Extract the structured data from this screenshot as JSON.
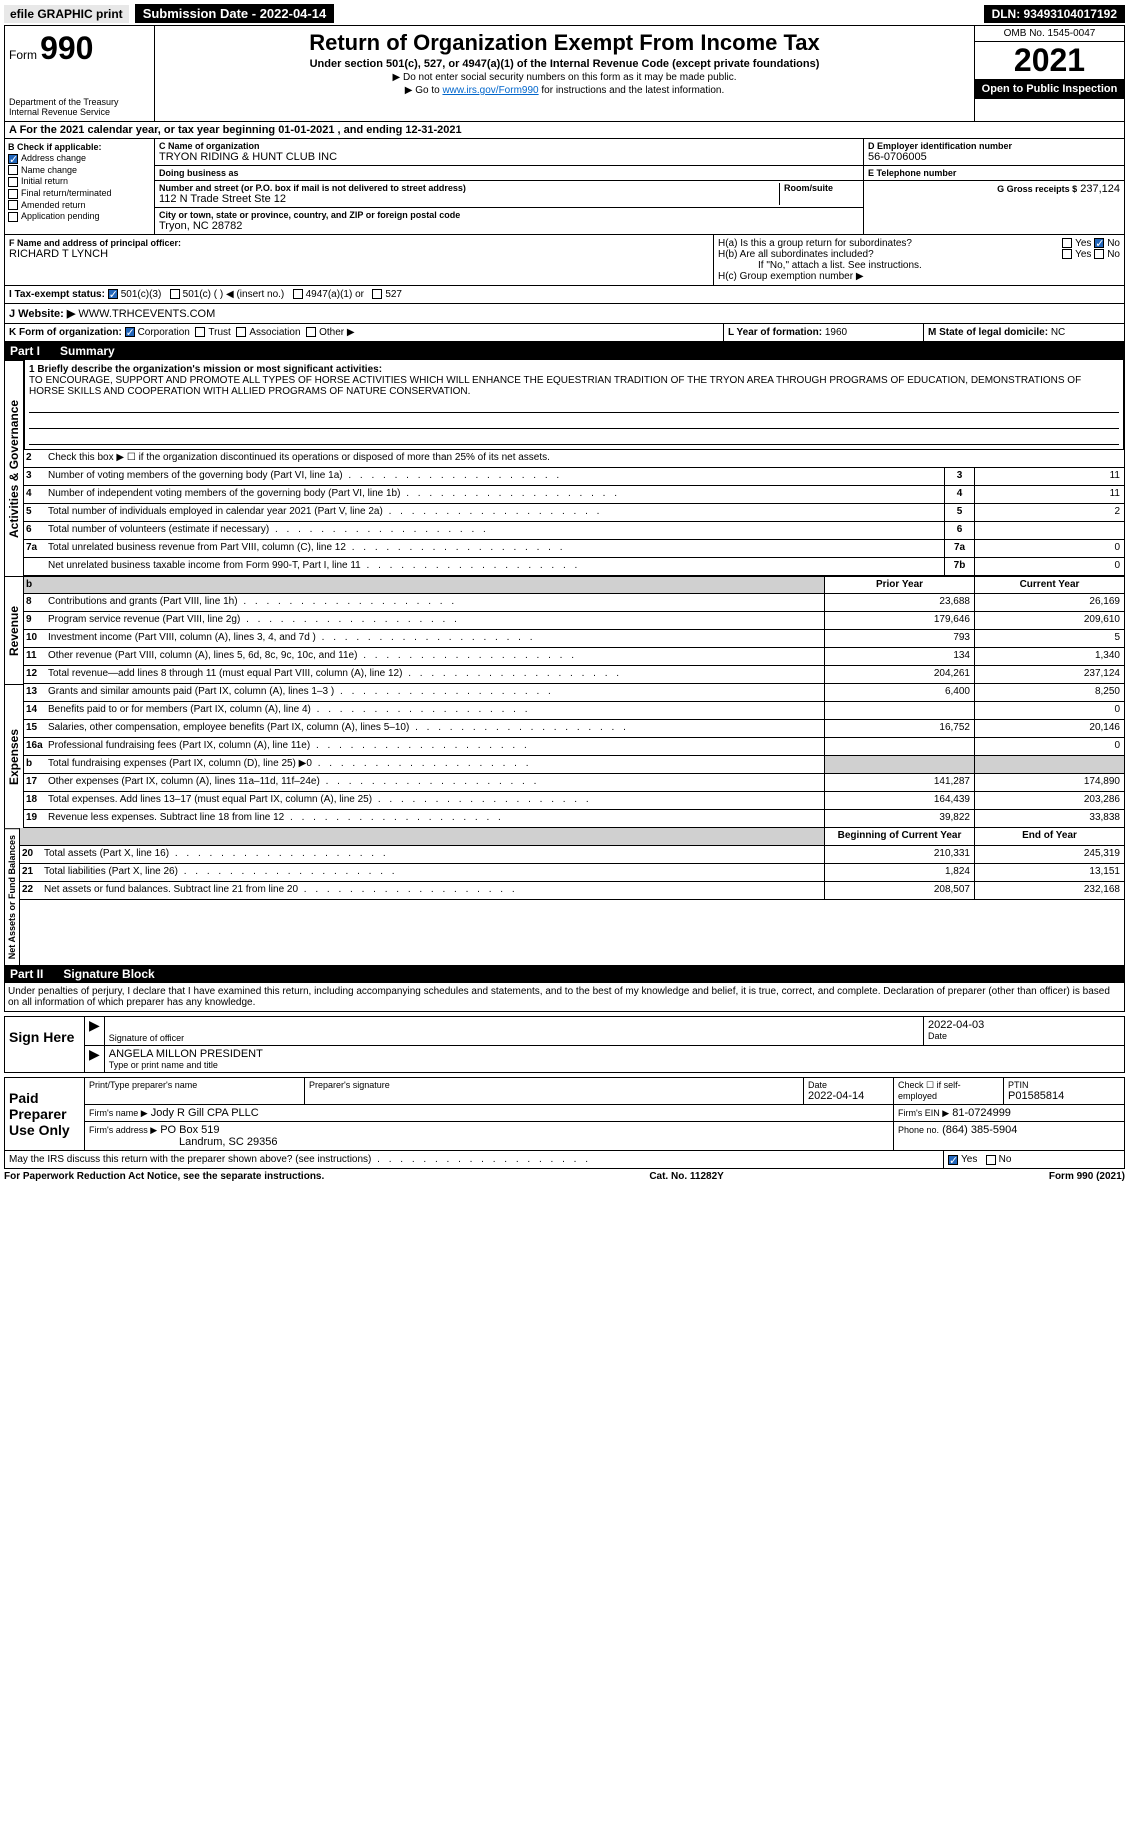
{
  "top": {
    "efile": "efile GRAPHIC print",
    "submission": "Submission Date - 2022-04-14",
    "dln": "DLN: 93493104017192"
  },
  "header": {
    "form_prefix": "Form",
    "form_num": "990",
    "title": "Return of Organization Exempt From Income Tax",
    "subtitle": "Under section 501(c), 527, or 4947(a)(1) of the Internal Revenue Code (except private foundations)",
    "note1": "▶ Do not enter social security numbers on this form as it may be made public.",
    "note2_prefix": "▶ Go to ",
    "note2_link": "www.irs.gov/Form990",
    "note2_suffix": " for instructions and the latest information.",
    "omb": "OMB No. 1545-0047",
    "year": "2021",
    "open_public": "Open to Public Inspection",
    "dept": "Department of the Treasury",
    "irs": "Internal Revenue Service"
  },
  "periodA": "A For the 2021 calendar year, or tax year beginning 01-01-2021    , and ending 12-31-2021",
  "checkB": {
    "label": "B Check if applicable:",
    "items": [
      "Address change",
      "Name change",
      "Initial return",
      "Final return/terminated",
      "Amended return",
      "Application pending"
    ],
    "checked_index": 0
  },
  "entity": {
    "c_label": "C Name of organization",
    "name": "TRYON RIDING & HUNT CLUB INC",
    "dba_label": "Doing business as",
    "dba": "",
    "addr_label": "Number and street (or P.O. box if mail is not delivered to street address)",
    "room_label": "Room/suite",
    "addr": "112 N Trade Street Ste 12",
    "city_label": "City or town, state or province, country, and ZIP or foreign postal code",
    "city": "Tryon, NC  28782",
    "d_label": "D Employer identification number",
    "ein": "56-0706005",
    "e_label": "E Telephone number",
    "phone": "",
    "g_label": "G Gross receipts $",
    "gross": "237,124"
  },
  "officerF": {
    "label": "F Name and address of principal officer:",
    "name": "RICHARD T LYNCH"
  },
  "groupH": {
    "ha": "H(a)  Is this a group return for subordinates?",
    "hb": "H(b)  Are all subordinates included?",
    "hb_note": "If \"No,\" attach a list. See instructions.",
    "hc": "H(c)  Group exemption number ▶",
    "yes": "Yes",
    "no": "No"
  },
  "taxI": {
    "label": "I  Tax-exempt status:",
    "opts": [
      "501(c)(3)",
      "501(c) (   ) ◀ (insert no.)",
      "4947(a)(1) or",
      "527"
    ]
  },
  "websiteJ": {
    "label": "J  Website: ▶",
    "value": "WWW.TRHCEVENTS.COM"
  },
  "orgK": {
    "label": "K Form of organization:",
    "opts": [
      "Corporation",
      "Trust",
      "Association",
      "Other ▶"
    ]
  },
  "yearL": {
    "label": "L Year of formation:",
    "value": "1960"
  },
  "stateM": {
    "label": "M State of legal domicile:",
    "value": "NC"
  },
  "part1": {
    "label": "Part I",
    "title": "Summary",
    "mission_label": "1  Briefly describe the organization's mission or most significant activities:",
    "mission": "TO ENCOURAGE, SUPPORT AND PROMOTE ALL TYPES OF HORSE ACTIVITIES WHICH WILL ENHANCE THE EQUESTRIAN TRADITION OF THE TRYON AREA THROUGH PROGRAMS OF EDUCATION, DEMONSTRATIONS OF HORSE SKILLS AND COOPERATION WITH ALLIED PROGRAMS OF NATURE CONSERVATION.",
    "line2": "Check this box ▶ ☐  if the organization discontinued its operations or disposed of more than 25% of its net assets.",
    "gov_lines": [
      {
        "n": "3",
        "t": "Number of voting members of the governing body (Part VI, line 1a)",
        "box": "3",
        "v": "11"
      },
      {
        "n": "4",
        "t": "Number of independent voting members of the governing body (Part VI, line 1b)",
        "box": "4",
        "v": "11"
      },
      {
        "n": "5",
        "t": "Total number of individuals employed in calendar year 2021 (Part V, line 2a)",
        "box": "5",
        "v": "2"
      },
      {
        "n": "6",
        "t": "Total number of volunteers (estimate if necessary)",
        "box": "6",
        "v": ""
      },
      {
        "n": "7a",
        "t": "Total unrelated business revenue from Part VIII, column (C), line 12",
        "box": "7a",
        "v": "0"
      },
      {
        "n": "",
        "t": "Net unrelated business taxable income from Form 990-T, Part I, line 11",
        "box": "7b",
        "v": "0"
      }
    ],
    "col_prior": "Prior Year",
    "col_current": "Current Year",
    "rev_lines": [
      {
        "n": "8",
        "t": "Contributions and grants (Part VIII, line 1h)",
        "p": "23,688",
        "c": "26,169"
      },
      {
        "n": "9",
        "t": "Program service revenue (Part VIII, line 2g)",
        "p": "179,646",
        "c": "209,610"
      },
      {
        "n": "10",
        "t": "Investment income (Part VIII, column (A), lines 3, 4, and 7d )",
        "p": "793",
        "c": "5"
      },
      {
        "n": "11",
        "t": "Other revenue (Part VIII, column (A), lines 5, 6d, 8c, 9c, 10c, and 11e)",
        "p": "134",
        "c": "1,340"
      },
      {
        "n": "12",
        "t": "Total revenue—add lines 8 through 11 (must equal Part VIII, column (A), line 12)",
        "p": "204,261",
        "c": "237,124"
      }
    ],
    "exp_lines": [
      {
        "n": "13",
        "t": "Grants and similar amounts paid (Part IX, column (A), lines 1–3 )",
        "p": "6,400",
        "c": "8,250"
      },
      {
        "n": "14",
        "t": "Benefits paid to or for members (Part IX, column (A), line 4)",
        "p": "",
        "c": "0"
      },
      {
        "n": "15",
        "t": "Salaries, other compensation, employee benefits (Part IX, column (A), lines 5–10)",
        "p": "16,752",
        "c": "20,146"
      },
      {
        "n": "16a",
        "t": "Professional fundraising fees (Part IX, column (A), line 11e)",
        "p": "",
        "c": "0"
      },
      {
        "n": "b",
        "t": "Total fundraising expenses (Part IX, column (D), line 25) ▶0",
        "p": "",
        "c": "",
        "shaded": true
      },
      {
        "n": "17",
        "t": "Other expenses (Part IX, column (A), lines 11a–11d, 11f–24e)",
        "p": "141,287",
        "c": "174,890"
      },
      {
        "n": "18",
        "t": "Total expenses. Add lines 13–17 (must equal Part IX, column (A), line 25)",
        "p": "164,439",
        "c": "203,286"
      },
      {
        "n": "19",
        "t": "Revenue less expenses. Subtract line 18 from line 12",
        "p": "39,822",
        "c": "33,838"
      }
    ],
    "col_begin": "Beginning of Current Year",
    "col_end": "End of Year",
    "na_lines": [
      {
        "n": "20",
        "t": "Total assets (Part X, line 16)",
        "p": "210,331",
        "c": "245,319"
      },
      {
        "n": "21",
        "t": "Total liabilities (Part X, line 26)",
        "p": "1,824",
        "c": "13,151"
      },
      {
        "n": "22",
        "t": "Net assets or fund balances. Subtract line 21 from line 20",
        "p": "208,507",
        "c": "232,168"
      }
    ],
    "side_gov": "Activities & Governance",
    "side_rev": "Revenue",
    "side_exp": "Expenses",
    "side_na": "Net Assets or Fund Balances"
  },
  "part2": {
    "label": "Part II",
    "title": "Signature Block",
    "penult": "Under penalties of perjury, I declare that I have examined this return, including accompanying schedules and statements, and to the best of my knowledge and belief, it is true, correct, and complete. Declaration of preparer (other than officer) is based on all information of which preparer has any knowledge."
  },
  "sign": {
    "here": "Sign Here",
    "sig_officer": "Signature of officer",
    "date_label": "Date",
    "date": "2022-04-03",
    "name_title": "ANGELA MILLON  PRESIDENT",
    "type_label": "Type or print name and title"
  },
  "paid": {
    "label": "Paid Preparer Use Only",
    "print_label": "Print/Type preparer's name",
    "sig_label": "Preparer's signature",
    "date_label": "Date",
    "date": "2022-04-14",
    "check_label": "Check ☐ if self-employed",
    "ptin_label": "PTIN",
    "ptin": "P01585814",
    "firm_name_label": "Firm's name    ▶",
    "firm_name": "Jody R Gill CPA PLLC",
    "firm_ein_label": "Firm's EIN ▶",
    "firm_ein": "81-0724999",
    "firm_addr_label": "Firm's address ▶",
    "firm_addr1": "PO Box 519",
    "firm_addr2": "Landrum, SC  29356",
    "phone_label": "Phone no.",
    "phone": "(864) 385-5904"
  },
  "discuss": {
    "text": "May the IRS discuss this return with the preparer shown above? (see instructions)",
    "yes": "Yes",
    "no": "No"
  },
  "footer": {
    "left": "For Paperwork Reduction Act Notice, see the separate instructions.",
    "mid": "Cat. No. 11282Y",
    "right": "Form 990 (2021)"
  }
}
